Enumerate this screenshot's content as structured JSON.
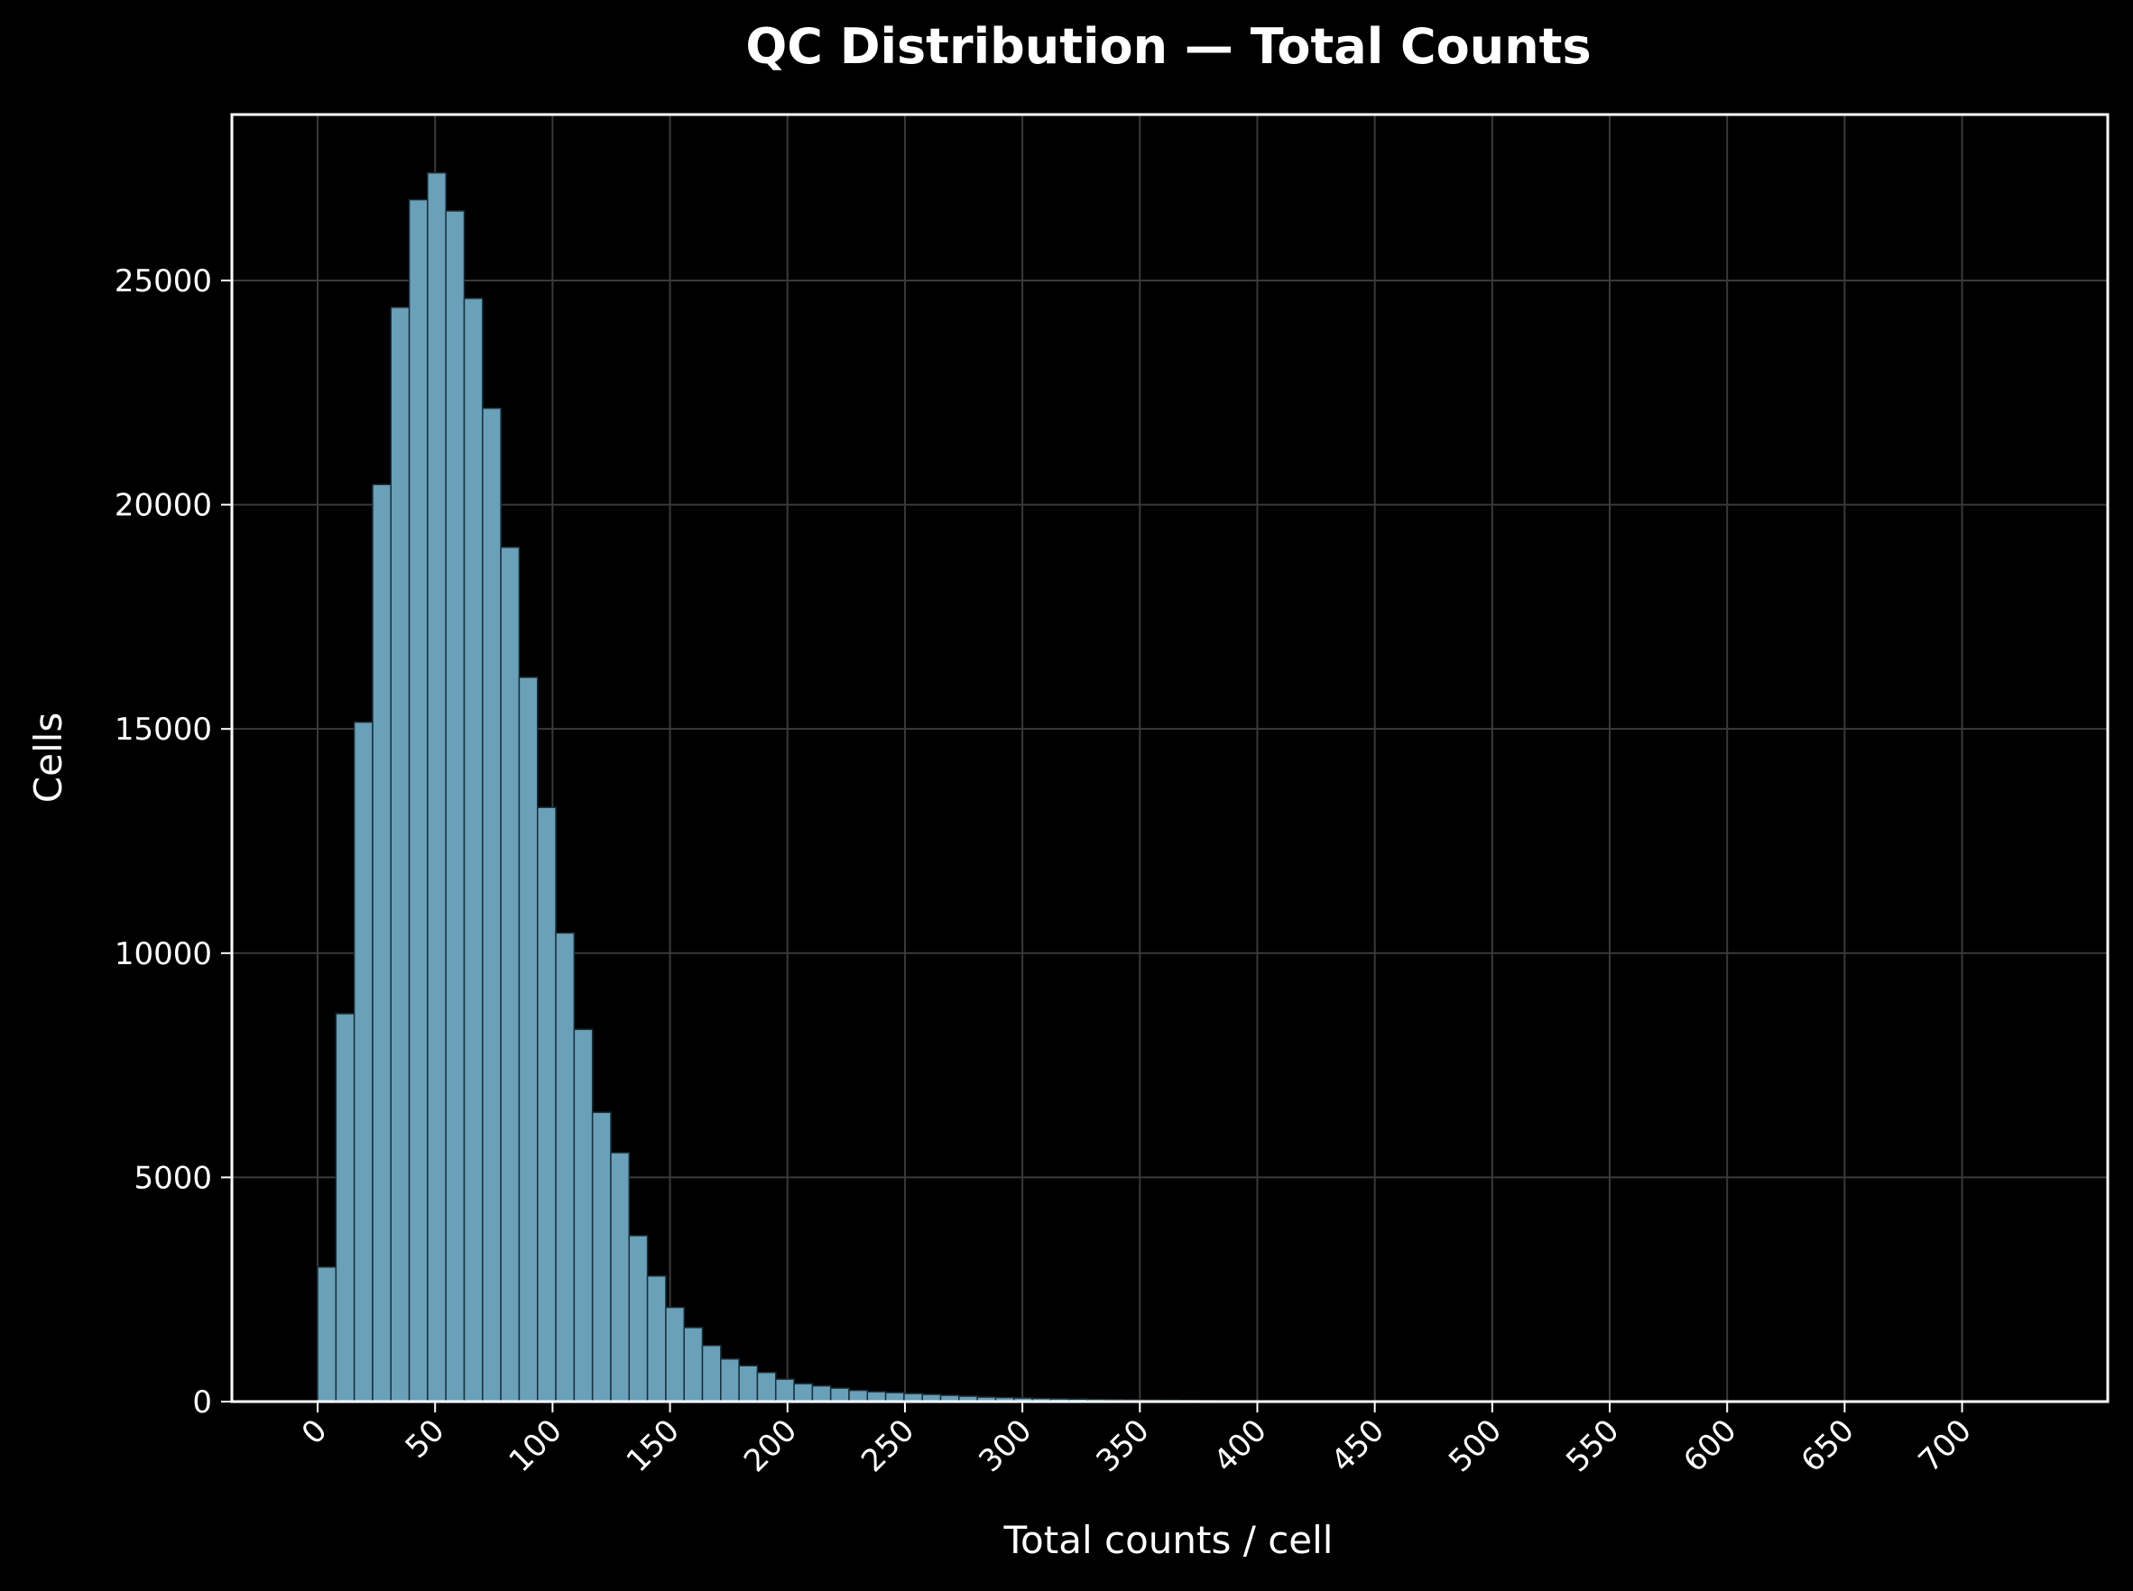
{
  "chart_data": {
    "type": "bar",
    "title": "QC Distribution — Total Counts",
    "xlabel": "Total counts / cell",
    "ylabel": "Cells",
    "bin_width": 7.8,
    "bin_start": 0,
    "xlim": [
      -36.5,
      762
    ],
    "ylim": [
      0,
      28700
    ],
    "xticks": [
      0,
      50,
      100,
      150,
      200,
      250,
      300,
      350,
      400,
      450,
      500,
      550,
      600,
      650,
      700
    ],
    "yticks": [
      0,
      5000,
      10000,
      15000,
      20000,
      25000
    ],
    "grid": true,
    "colors": {
      "background": "#000000",
      "bar_fill": "#6aa0b8",
      "bar_edge": "#16303d",
      "axes": "#ffffff",
      "grid": "#3a3a3a"
    },
    "values": [
      3000,
      8650,
      15150,
      20450,
      24400,
      26800,
      27400,
      26550,
      24600,
      22150,
      19050,
      16150,
      13250,
      10450,
      8300,
      6450,
      5550,
      3700,
      2800,
      2100,
      1650,
      1250,
      950,
      800,
      650,
      500,
      400,
      350,
      300,
      250,
      220,
      200,
      180,
      160,
      140,
      120,
      100,
      90,
      80,
      70,
      60,
      55,
      50,
      45,
      40,
      35,
      30,
      25,
      20,
      15,
      12
    ]
  }
}
